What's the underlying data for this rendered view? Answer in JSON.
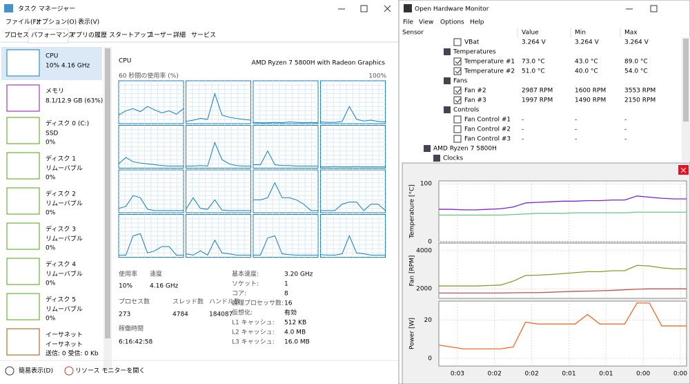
{
  "task_manager": {
    "title": "タスク マネージャー",
    "menu": [
      "ファイル(F)",
      "オプション(O)",
      "表示(V)"
    ],
    "tabs": [
      "プロセス",
      "パフォーマンス",
      "アプリの履歴",
      "スタートアップ",
      "ユーザー",
      "詳細",
      "サービス"
    ],
    "active_tab": 1,
    "sidebar": [
      {
        "name": "CPU",
        "detail": [
          "10% 4.16 GHz"
        ]
      },
      {
        "name": "メモリ",
        "detail": [
          "8.1/12.9 GB (63%)"
        ]
      },
      {
        "name": "ディスク 0 (C:)",
        "detail": [
          "SSD",
          "0%"
        ]
      },
      {
        "name": "ディスク 1",
        "detail": [
          "リムーバブル",
          "0%"
        ]
      },
      {
        "name": "ディスク 2",
        "detail": [
          "リムーバブル",
          "0%"
        ]
      },
      {
        "name": "ディスク 3",
        "detail": [
          "リムーバブル",
          "0%"
        ]
      },
      {
        "name": "ディスク 4",
        "detail": [
          "リムーバブル",
          "0%"
        ]
      },
      {
        "name": "ディスク 5",
        "detail": [
          "リムーバブル",
          "0%"
        ]
      },
      {
        "name": "イーサネット",
        "detail": [
          "イーサネット",
          "送信: 0 受信: 0 Kb"
        ]
      }
    ],
    "active_item": 0,
    "heading": "CPU",
    "model": "AMD Ryzen 7 5800H with Radeon Graphics",
    "graph_label": "60 秒間の使用率 (%)",
    "graph_max": "100%",
    "core_graphs": {
      "ylim": [
        0,
        100
      ],
      "color": "#117dbb",
      "series": [
        [
          20,
          30,
          35,
          28,
          40,
          32,
          25,
          30,
          22,
          35
        ],
        [
          5,
          8,
          12,
          10,
          70,
          20,
          15,
          12,
          10,
          8
        ],
        [
          3,
          2,
          2,
          3,
          2,
          4,
          3,
          2,
          3,
          2
        ],
        [
          4,
          3,
          3,
          5,
          40,
          10,
          6,
          8,
          5,
          4
        ],
        [
          10,
          25,
          15,
          12,
          10,
          8,
          6,
          5,
          5,
          5
        ],
        [
          5,
          5,
          6,
          5,
          60,
          20,
          10,
          6,
          5,
          5
        ],
        [
          8,
          8,
          40,
          8,
          6,
          6,
          5,
          5,
          5,
          5
        ],
        [
          3,
          3,
          4,
          3,
          3,
          4,
          3,
          3,
          3,
          3
        ],
        [
          10,
          15,
          40,
          35,
          8,
          5,
          5,
          5,
          5,
          5
        ],
        [
          8,
          35,
          10,
          8,
          30,
          6,
          5,
          5,
          5,
          5
        ],
        [
          30,
          30,
          35,
          70,
          35,
          35,
          30,
          20,
          5,
          5
        ],
        [
          5,
          5,
          5,
          20,
          25,
          25,
          5,
          20,
          20,
          5
        ],
        [
          5,
          5,
          50,
          55,
          10,
          15,
          25,
          25,
          5,
          5
        ],
        [
          8,
          5,
          15,
          5,
          40,
          10,
          8,
          5,
          5,
          5
        ],
        [
          5,
          5,
          45,
          50,
          8,
          6,
          5,
          5,
          5,
          5
        ],
        [
          6,
          5,
          5,
          8,
          50,
          10,
          8,
          5,
          5,
          5
        ]
      ]
    },
    "stats": [
      {
        "label": "使用率",
        "value": "10%"
      },
      {
        "label": "速度",
        "value": "4.16 GHz"
      },
      {
        "label": "プロセス数",
        "value": "273"
      },
      {
        "label": "スレッド数",
        "value": "4784"
      },
      {
        "label": "ハンドル数",
        "value": "184087"
      },
      {
        "label": "稼働時間",
        "value": "6:16:42:58"
      }
    ],
    "specs": [
      [
        "基本速度:",
        "3.20 GHz"
      ],
      [
        "ソケット:",
        "1"
      ],
      [
        "コア:",
        "8"
      ],
      [
        "論理プロセッサ数:",
        "16"
      ],
      [
        "仮想化:",
        "有効"
      ],
      [
        "L1 キャッシュ:",
        "512 KB"
      ],
      [
        "L2 キャッシュ:",
        "4.0 MB"
      ],
      [
        "L3 キャッシュ:",
        "16.0 MB"
      ]
    ],
    "footer": [
      "簡易表示(D)",
      "リソース モニターを開く"
    ]
  },
  "hardware_monitor": {
    "title": "Open Hardware Monitor",
    "menu": [
      "File",
      "View",
      "Options",
      "Help"
    ],
    "columns": [
      "Sensor",
      "Value",
      "Min",
      "Max"
    ],
    "rows": [
      {
        "name": "VBat",
        "value": "3.264 V",
        "min": "3.264 V",
        "max": "3.264 V",
        "checked": false
      },
      {
        "name": "Temperatures"
      },
      {
        "name": "Temperature #1",
        "value": "73.0 °C",
        "min": "43.0 °C",
        "max": "89.0 °C",
        "checked": true,
        "color": "#e0159a"
      },
      {
        "name": "Temperature #2",
        "value": "51.0 °C",
        "min": "40.0 °C",
        "max": "54.0 °C",
        "checked": true,
        "color": "#3cbf6e"
      },
      {
        "name": "Fans"
      },
      {
        "name": "Fan #2",
        "value": "2987 RPM",
        "min": "1600 RPM",
        "max": "3553 RPM",
        "checked": true,
        "color": "#9a9a10"
      },
      {
        "name": "Fan #3",
        "value": "1997 RPM",
        "min": "1490 RPM",
        "max": "2150 RPM",
        "checked": true,
        "color": "#c0392b"
      },
      {
        "name": "Controls"
      },
      {
        "name": "Fan Control #1",
        "value": "-",
        "min": "-",
        "max": "-",
        "checked": false
      },
      {
        "name": "Fan Control #2",
        "value": "-",
        "min": "-",
        "max": "-",
        "checked": false
      },
      {
        "name": "Fan Control #3",
        "value": "-",
        "min": "-",
        "max": "-",
        "checked": false
      },
      {
        "name": "AMD Ryzen 7 5800H"
      },
      {
        "name": "Clocks"
      }
    ],
    "plot": {
      "type": "line",
      "x": [
        -200,
        -190,
        -180,
        -170,
        -160,
        -150,
        -140,
        -130,
        -120,
        -110,
        -100,
        -90,
        -80,
        -70,
        -60,
        -50,
        -40,
        -30,
        -20,
        -10,
        0
      ],
      "xlim": [
        -200,
        0
      ],
      "xticks": [
        {
          "value": -185,
          "label": "0:03"
        },
        {
          "value": -155,
          "label": "0:02"
        },
        {
          "value": -125,
          "label": "0:02"
        },
        {
          "value": -95,
          "label": "0:01"
        },
        {
          "value": -65,
          "label": "0:01"
        },
        {
          "value": -35,
          "label": "0:00"
        },
        {
          "value": -5,
          "label": "0:00"
        }
      ],
      "grid": true,
      "panels": [
        {
          "ylabel": "Temperature [°C]",
          "ylim": [
            0,
            105
          ],
          "yticks": [
            0,
            100
          ],
          "series": [
            {
              "color": "#7a22d8",
              "values": [
                56,
                56,
                55,
                55,
                56,
                57,
                60,
                67,
                68,
                69,
                70,
                70,
                71,
                71,
                72,
                72,
                79,
                77,
                75,
                74,
                74
              ]
            },
            {
              "color": "#6fc28d",
              "values": [
                46,
                46,
                46,
                46,
                46,
                46,
                47,
                48,
                49,
                49,
                49,
                50,
                50,
                50,
                50,
                50,
                51,
                51,
                51,
                51,
                51
              ]
            }
          ]
        },
        {
          "ylabel": "Fan [RPM]",
          "ylim": [
            1500,
            4400
          ],
          "yticks": [
            2000,
            4000
          ],
          "series": [
            {
              "color": "#8a9a2a",
              "values": [
                2150,
                2150,
                2150,
                2150,
                2170,
                2200,
                2400,
                2700,
                2720,
                2750,
                2800,
                2850,
                2900,
                2900,
                2950,
                2950,
                3230,
                3200,
                3100,
                3050,
                3050
              ]
            },
            {
              "color": "#c0504d",
              "values": [
                1780,
                1780,
                1780,
                1780,
                1780,
                1780,
                1790,
                1800,
                1800,
                1820,
                1850,
                1870,
                1880,
                1900,
                1920,
                1950,
                1980,
                2000,
                2000,
                2000,
                2000
              ]
            }
          ]
        },
        {
          "ylabel": "Power [W]",
          "ylim": [
            -4,
            30
          ],
          "yticks": [
            0,
            20
          ],
          "series": [
            {
              "color": "#f06a28",
              "values": [
                7,
                6,
                5,
                5,
                5,
                5,
                6,
                19,
                18,
                18,
                18,
                18,
                23,
                18,
                18,
                18,
                29,
                29,
                17,
                17,
                17
              ]
            }
          ]
        }
      ]
    }
  }
}
